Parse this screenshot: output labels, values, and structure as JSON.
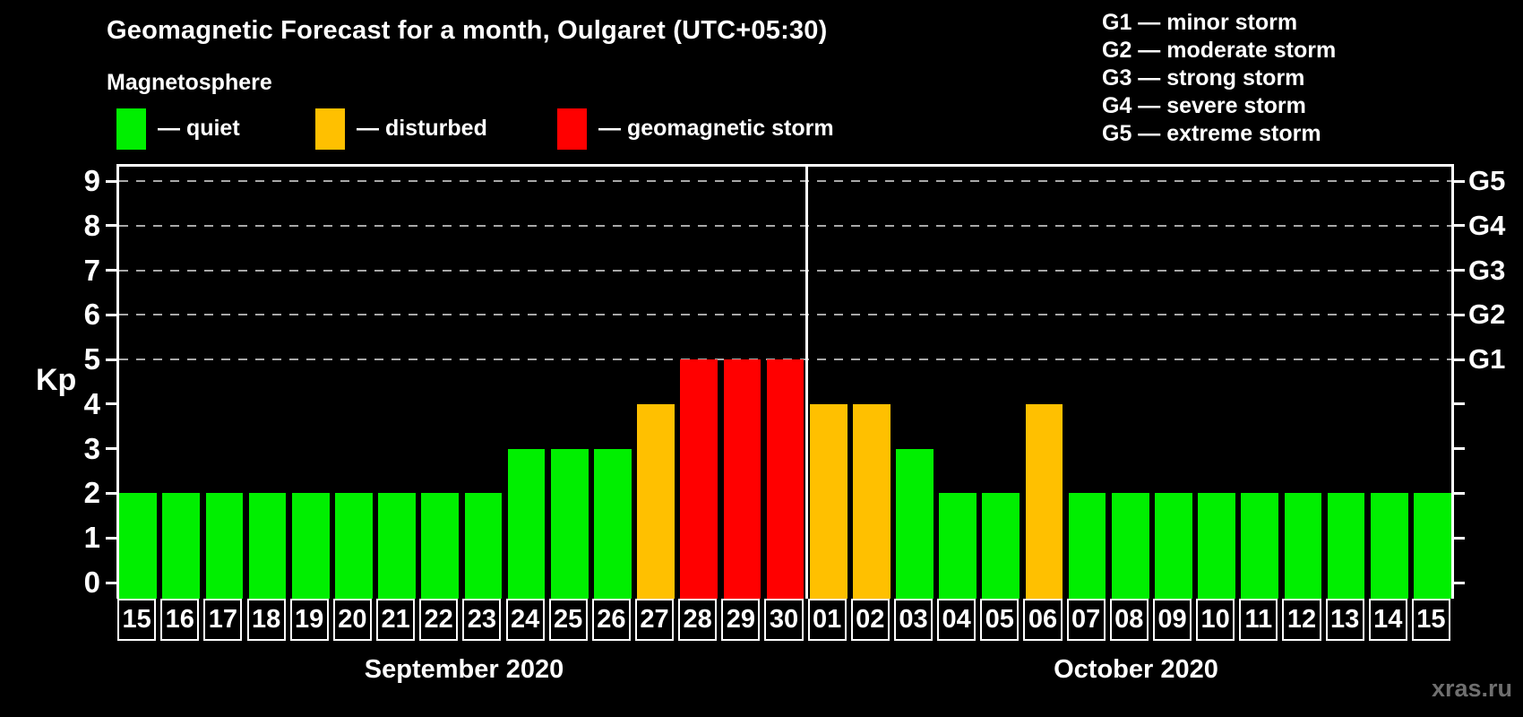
{
  "title": "Geomagnetic Forecast for a month, Oulgaret (UTC+05:30)",
  "subtitle": "Magnetosphere",
  "legend": {
    "items": [
      {
        "status": "quiet",
        "label": "— quiet",
        "color": "#00ef00"
      },
      {
        "status": "disturbed",
        "label": "— disturbed",
        "color": "#ffc000"
      },
      {
        "status": "storm",
        "label": "— geomagnetic storm",
        "color": "#ff0000"
      }
    ]
  },
  "g_legend": [
    "G1 — minor storm",
    "G2 — moderate storm",
    "G3 — strong storm",
    "G4 — severe storm",
    "G5 — extreme storm"
  ],
  "watermark": "xras.ru",
  "colors": {
    "background": "#000000",
    "text": "#ffffff",
    "grid": "#a8a8a8",
    "axis": "#ffffff",
    "watermark": "#6f6f6f"
  },
  "chart_data": {
    "type": "bar",
    "title": "Geomagnetic Forecast for a month, Oulgaret (UTC+05:30)",
    "ylabel": "Kp",
    "ylim": [
      0,
      9.4
    ],
    "yticks": [
      0,
      1,
      2,
      3,
      4,
      5,
      6,
      7,
      8,
      9
    ],
    "grid_levels": [
      5,
      6,
      7,
      8,
      9
    ],
    "grid_style": "dashed",
    "legend_position": "top",
    "right_axis": [
      {
        "label": "G1",
        "kp": 5
      },
      {
        "label": "G2",
        "kp": 6
      },
      {
        "label": "G3",
        "kp": 7
      },
      {
        "label": "G4",
        "kp": 8
      },
      {
        "label": "G5",
        "kp": 9
      }
    ],
    "months": [
      {
        "label": "September 2020",
        "days": 16
      },
      {
        "label": "October 2020",
        "days": 15
      }
    ],
    "categories": [
      "15",
      "16",
      "17",
      "18",
      "19",
      "20",
      "21",
      "22",
      "23",
      "24",
      "25",
      "26",
      "27",
      "28",
      "29",
      "30",
      "01",
      "02",
      "03",
      "04",
      "05",
      "06",
      "07",
      "08",
      "09",
      "10",
      "11",
      "12",
      "13",
      "14",
      "15"
    ],
    "values": [
      2,
      2,
      2,
      2,
      2,
      2,
      2,
      2,
      2,
      3,
      3,
      3,
      4,
      5,
      5,
      5,
      4,
      4,
      3,
      2,
      2,
      4,
      2,
      2,
      2,
      2,
      2,
      2,
      2,
      2,
      2
    ],
    "statuses": [
      "quiet",
      "quiet",
      "quiet",
      "quiet",
      "quiet",
      "quiet",
      "quiet",
      "quiet",
      "quiet",
      "quiet",
      "quiet",
      "quiet",
      "disturbed",
      "storm",
      "storm",
      "storm",
      "disturbed",
      "disturbed",
      "quiet",
      "quiet",
      "quiet",
      "disturbed",
      "quiet",
      "quiet",
      "quiet",
      "quiet",
      "quiet",
      "quiet",
      "quiet",
      "quiet",
      "quiet"
    ]
  }
}
